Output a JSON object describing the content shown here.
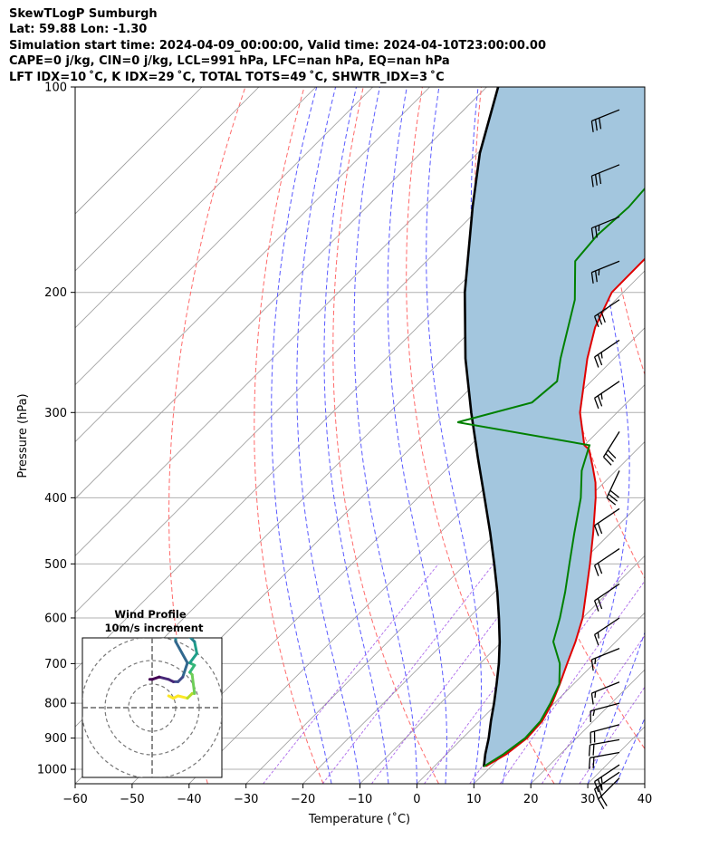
{
  "header": {
    "line1": "SkewTLogP Sumburgh",
    "line2": "Lat: 59.88   Lon: -1.30",
    "line3": "Simulation start time: 2024-04-09_00:00:00, Valid time: 2024-04-10T23:00:00.00",
    "line4": "CAPE=0 j/kg, CIN=0 j/kg, LCL=991 hPa, LFC=nan hPa, EQ=nan hPa",
    "line5": "LFT IDX=10 ˚C, K IDX=29 ˚C, TOTAL TOTS=49 ˚C, SHWTR_IDX=3 ˚C"
  },
  "colors": {
    "temperature": "#e00000",
    "dewpoint": "#008000",
    "parcel": "#000000",
    "shade": "#a3c6de",
    "dry_adiabat": "#ff6a6a",
    "moist_adiabat": "#5a5aff",
    "isotherm": "#9a9a9a",
    "mixing_ratio": "#8a2be2"
  },
  "chart_data": {
    "type": "skewt",
    "xlabel": "Temperature (˚C)",
    "ylabel": "Pressure (hPa)",
    "xlim": [
      -60,
      40
    ],
    "plim": [
      1050,
      100
    ],
    "x_ticks": [
      "−60",
      "−50",
      "−40",
      "−30",
      "−20",
      "−10",
      "0",
      "10",
      "20",
      "30",
      "40"
    ],
    "x_tick_values": [
      -60,
      -50,
      -40,
      -30,
      -20,
      -10,
      0,
      10,
      20,
      30,
      40
    ],
    "p_ticks": [
      "100",
      "200",
      "300",
      "400",
      "500",
      "600",
      "700",
      "800",
      "900",
      "1000"
    ],
    "p_tick_values": [
      100,
      200,
      300,
      400,
      500,
      600,
      700,
      800,
      900,
      1000
    ],
    "temperature_profile": [
      {
        "p": 990,
        "t": 9.0
      },
      {
        "p": 950,
        "t": 10.5
      },
      {
        "p": 900,
        "t": 11.3
      },
      {
        "p": 850,
        "t": 11.0
      },
      {
        "p": 800,
        "t": 9.6
      },
      {
        "p": 750,
        "t": 7.6
      },
      {
        "p": 700,
        "t": 5.3
      },
      {
        "p": 650,
        "t": 2.9
      },
      {
        "p": 600,
        "t": 0.0
      },
      {
        "p": 550,
        "t": -3.9
      },
      {
        "p": 500,
        "t": -8.2
      },
      {
        "p": 450,
        "t": -13.1
      },
      {
        "p": 400,
        "t": -18.8
      },
      {
        "p": 380,
        "t": -21.5
      },
      {
        "p": 360,
        "t": -24.8
      },
      {
        "p": 340,
        "t": -28.4
      },
      {
        "p": 335,
        "t": -30.0
      },
      {
        "p": 300,
        "t": -36.5
      },
      {
        "p": 250,
        "t": -44.7
      },
      {
        "p": 225,
        "t": -48.8
      },
      {
        "p": 200,
        "t": -52.0
      },
      {
        "p": 175,
        "t": -52.1
      },
      {
        "p": 150,
        "t": -55.4
      },
      {
        "p": 125,
        "t": -58.6
      },
      {
        "p": 110,
        "t": -61.3
      },
      {
        "p": 100,
        "t": -63.4
      }
    ],
    "dewpoint_profile": [
      {
        "p": 990,
        "td": 8.7
      },
      {
        "p": 950,
        "td": 10.0
      },
      {
        "p": 900,
        "td": 11.0
      },
      {
        "p": 850,
        "td": 10.7
      },
      {
        "p": 800,
        "td": 9.3
      },
      {
        "p": 750,
        "td": 7.5
      },
      {
        "p": 700,
        "td": 4.0
      },
      {
        "p": 650,
        "td": -1.0
      },
      {
        "p": 600,
        "td": -4.0
      },
      {
        "p": 550,
        "td": -7.6
      },
      {
        "p": 500,
        "td": -11.8
      },
      {
        "p": 450,
        "td": -16.4
      },
      {
        "p": 400,
        "td": -21.4
      },
      {
        "p": 365,
        "td": -26.0
      },
      {
        "p": 335,
        "td": -29.1
      },
      {
        "p": 310,
        "td": -56.3
      },
      {
        "p": 290,
        "td": -46.7
      },
      {
        "p": 270,
        "td": -46.0
      },
      {
        "p": 250,
        "td": -49.4
      },
      {
        "p": 205,
        "td": -57.2
      },
      {
        "p": 180,
        "td": -63.9
      },
      {
        "p": 165,
        "td": -64.6
      },
      {
        "p": 150,
        "td": -64.0
      },
      {
        "p": 125,
        "td": -65.2
      },
      {
        "p": 110,
        "td": -67.1
      },
      {
        "p": 100,
        "td": -68.9
      }
    ],
    "parcel_profile": [
      {
        "p": 992,
        "t": 8.8
      },
      {
        "p": 950,
        "t": 6.8
      },
      {
        "p": 900,
        "t": 4.6
      },
      {
        "p": 850,
        "t": 2.0
      },
      {
        "p": 800,
        "t": -0.6
      },
      {
        "p": 750,
        "t": -3.5
      },
      {
        "p": 700,
        "t": -6.7
      },
      {
        "p": 650,
        "t": -10.4
      },
      {
        "p": 600,
        "t": -14.7
      },
      {
        "p": 550,
        "t": -19.5
      },
      {
        "p": 500,
        "t": -25.0
      },
      {
        "p": 450,
        "t": -31.2
      },
      {
        "p": 400,
        "t": -38.3
      },
      {
        "p": 350,
        "t": -46.4
      },
      {
        "p": 300,
        "t": -55.6
      },
      {
        "p": 250,
        "t": -66.1
      },
      {
        "p": 200,
        "t": -77.8
      },
      {
        "p": 150,
        "t": -91.4
      },
      {
        "p": 125,
        "t": -99.6
      },
      {
        "p": 100,
        "t": -108.0
      }
    ],
    "wind_barbs": [
      {
        "p": 108,
        "speed_kt": 30,
        "dir_deg": 248
      },
      {
        "p": 130,
        "speed_kt": 30,
        "dir_deg": 248
      },
      {
        "p": 155,
        "speed_kt": 25,
        "dir_deg": 248
      },
      {
        "p": 180,
        "speed_kt": 25,
        "dir_deg": 248
      },
      {
        "p": 205,
        "speed_kt": 30,
        "dir_deg": 236
      },
      {
        "p": 235,
        "speed_kt": 25,
        "dir_deg": 236
      },
      {
        "p": 270,
        "speed_kt": 25,
        "dir_deg": 236
      },
      {
        "p": 320,
        "speed_kt": 30,
        "dir_deg": 212
      },
      {
        "p": 365,
        "speed_kt": 30,
        "dir_deg": 205
      },
      {
        "p": 415,
        "speed_kt": 20,
        "dir_deg": 236
      },
      {
        "p": 475,
        "speed_kt": 20,
        "dir_deg": 236
      },
      {
        "p": 535,
        "speed_kt": 20,
        "dir_deg": 236
      },
      {
        "p": 600,
        "speed_kt": 15,
        "dir_deg": 236
      },
      {
        "p": 665,
        "speed_kt": 15,
        "dir_deg": 248
      },
      {
        "p": 745,
        "speed_kt": 15,
        "dir_deg": 248
      },
      {
        "p": 800,
        "speed_kt": 15,
        "dir_deg": 255
      },
      {
        "p": 860,
        "speed_kt": 20,
        "dir_deg": 255
      },
      {
        "p": 905,
        "speed_kt": 20,
        "dir_deg": 260
      },
      {
        "p": 945,
        "speed_kt": 20,
        "dir_deg": 260
      },
      {
        "p": 985,
        "speed_kt": 25,
        "dir_deg": 236
      },
      {
        "p": 1010,
        "speed_kt": 25,
        "dir_deg": 236
      },
      {
        "p": 1030,
        "speed_kt": 20,
        "dir_deg": 225
      }
    ],
    "hodograph": {
      "title_line1": "Wind Profile",
      "title_line2": "10m/s increment",
      "ring_increment_ms": 10,
      "rings": [
        10,
        20,
        30
      ],
      "points_uv": [
        [
          7,
          5
        ],
        [
          9,
          4
        ],
        [
          11,
          5
        ],
        [
          15,
          4
        ],
        [
          17,
          6
        ],
        [
          18,
          6
        ],
        [
          17,
          14
        ],
        [
          16,
          15
        ],
        [
          18,
          18
        ],
        [
          16,
          19
        ],
        [
          19,
          23
        ],
        [
          18,
          28
        ],
        [
          15,
          31
        ],
        [
          10,
          33
        ],
        [
          10,
          28
        ],
        [
          15,
          19
        ],
        [
          13,
          13
        ],
        [
          11,
          11
        ],
        [
          9,
          11
        ],
        [
          7,
          12
        ],
        [
          3,
          13
        ],
        [
          0,
          12
        ],
        [
          -1,
          12
        ]
      ]
    }
  }
}
